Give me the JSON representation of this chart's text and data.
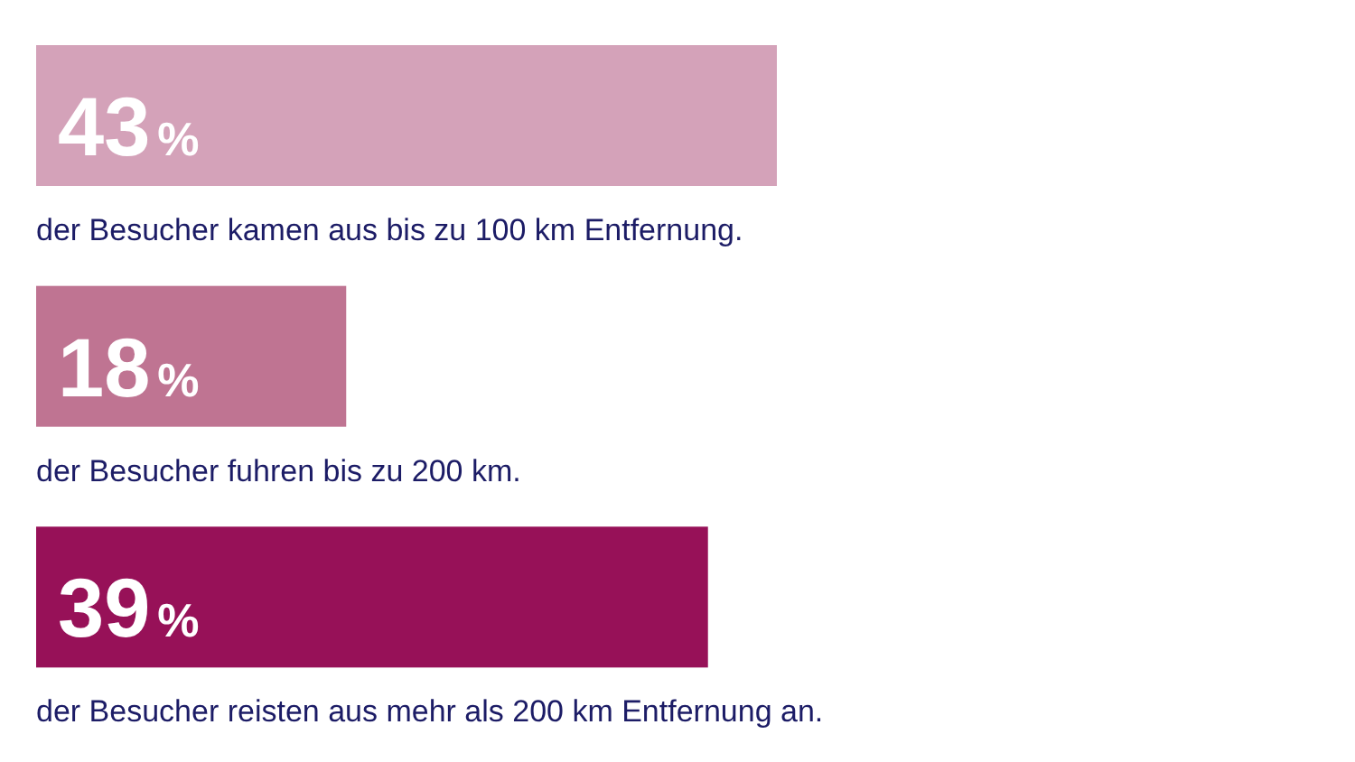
{
  "chart_data": {
    "type": "bar",
    "orientation": "horizontal",
    "categories": [
      "der Besucher kamen aus bis zu 100 km Entfernung.",
      "der Besucher fuhren bis zu 200 km.",
      "der Besucher reisten aus mehr als 200 km Entfernung an."
    ],
    "values": [
      43,
      18,
      39
    ],
    "colors": [
      "#d4a2b9",
      "#bf7492",
      "#971158"
    ],
    "value_labels": [
      "43%",
      "18%",
      "39%"
    ],
    "legend": false,
    "grid": false,
    "tick_labels": false
  }
}
